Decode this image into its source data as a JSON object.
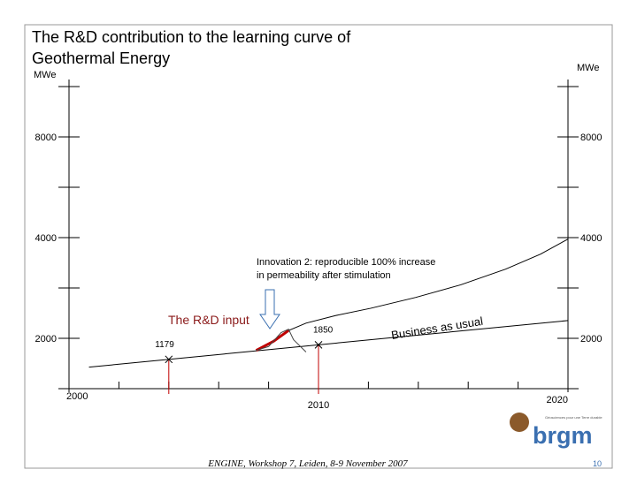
{
  "chart_data": {
    "type": "line",
    "title": [
      "The R&D contribution to the learning curve of",
      "Geothermal Energy"
    ],
    "ylabel": "MWe",
    "y2label": "MWe",
    "log_y": true,
    "xlim": [
      2000,
      2020
    ],
    "xticks": [
      2000,
      2010,
      2020
    ],
    "xminor_ticks": [
      2002,
      2004,
      2006,
      2008,
      2012,
      2014,
      2016,
      2018
    ],
    "ylim": [
      1414,
      11314
    ],
    "yticks": [
      2000,
      4000,
      8000
    ],
    "yminor_ticks": [
      1414,
      2828,
      5657,
      11314
    ],
    "y2lim": [
      1414,
      11314
    ],
    "y2ticks": [
      2000,
      4000,
      8000
    ],
    "y2minor_ticks": [
      1414,
      2828,
      5657,
      11314
    ],
    "series": [
      {
        "name": "Business as usual",
        "color": "#000000",
        "x": [
          2000.8,
          2020
        ],
        "values": [
          1640,
          2260
        ]
      },
      {
        "color": "#000000",
        "x": [
          2007.5,
          2008.2,
          2008.8,
          2009.5,
          2010.7,
          2012.1,
          2013.9,
          2015.7,
          2017.5,
          2018.9,
          2020
        ],
        "values": [
          1840,
          1960,
          2110,
          2220,
          2340,
          2460,
          2650,
          2890,
          3220,
          3570,
          3960
        ]
      },
      {
        "name": "The R&D input",
        "color": "#c00000",
        "x": [
          2007.5,
          2008.2,
          2008.8
        ],
        "values": [
          1840,
          1960,
          2110
        ]
      },
      {
        "color": "#444444",
        "x": [
          2007.5,
          2008.0,
          2008.5,
          2008.8,
          2009.0,
          2009.5
        ],
        "values": [
          1840,
          1890,
          2080,
          2130,
          1980,
          1820
        ]
      }
    ],
    "markers": [
      {
        "x": 2004,
        "value": 1179
      },
      {
        "x": 2010,
        "value": 1850
      }
    ],
    "annotations": [
      "Innovation 2: reproducible 100% increase",
      "in permeability after stimulation"
    ]
  },
  "footer": "ENGINE, Workshop 7, Leiden, 8-9 November 2007",
  "page": 10,
  "logo": {
    "name": "brgm",
    "tagline": "Géosciences pour une Terre durable"
  }
}
